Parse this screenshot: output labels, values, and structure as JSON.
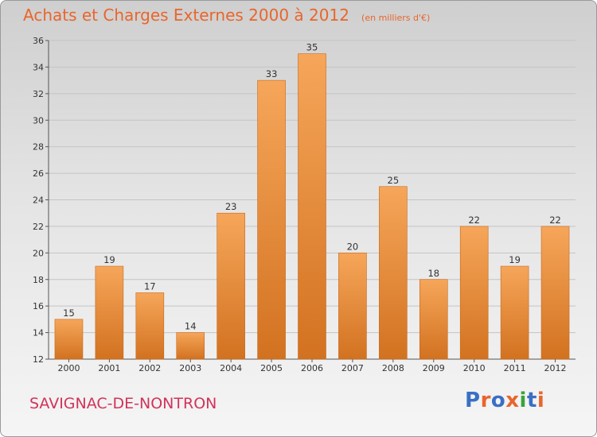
{
  "header": {
    "title": "Achats et Charges Externes 2000 à 2012",
    "subtitle": "(en milliers d'€)"
  },
  "footer": {
    "commune": "SAVIGNAC-DE-NONTRON",
    "logo": "Proxiti"
  },
  "colors": {
    "title": "#e8662c",
    "commune": "#d2335a",
    "bar_top": "#f6a65a",
    "bar_bottom": "#d27220",
    "logo_letters": [
      "#3a6fc4",
      "#e8662c",
      "#3a6fc4",
      "#e8662c",
      "#3aa33a",
      "#3a6fc4",
      "#e8662c"
    ]
  },
  "chart_data": {
    "type": "bar",
    "categories": [
      "2000",
      "2001",
      "2002",
      "2003",
      "2004",
      "2005",
      "2006",
      "2007",
      "2008",
      "2009",
      "2010",
      "2011",
      "2012"
    ],
    "values": [
      15,
      19,
      17,
      14,
      23,
      33,
      35,
      20,
      25,
      18,
      22,
      19,
      22
    ],
    "ylim": [
      12,
      36
    ],
    "yticks": [
      12,
      14,
      16,
      18,
      20,
      22,
      24,
      26,
      28,
      30,
      32,
      34,
      36
    ],
    "grid": true,
    "legend": "none",
    "data_labels": true
  }
}
